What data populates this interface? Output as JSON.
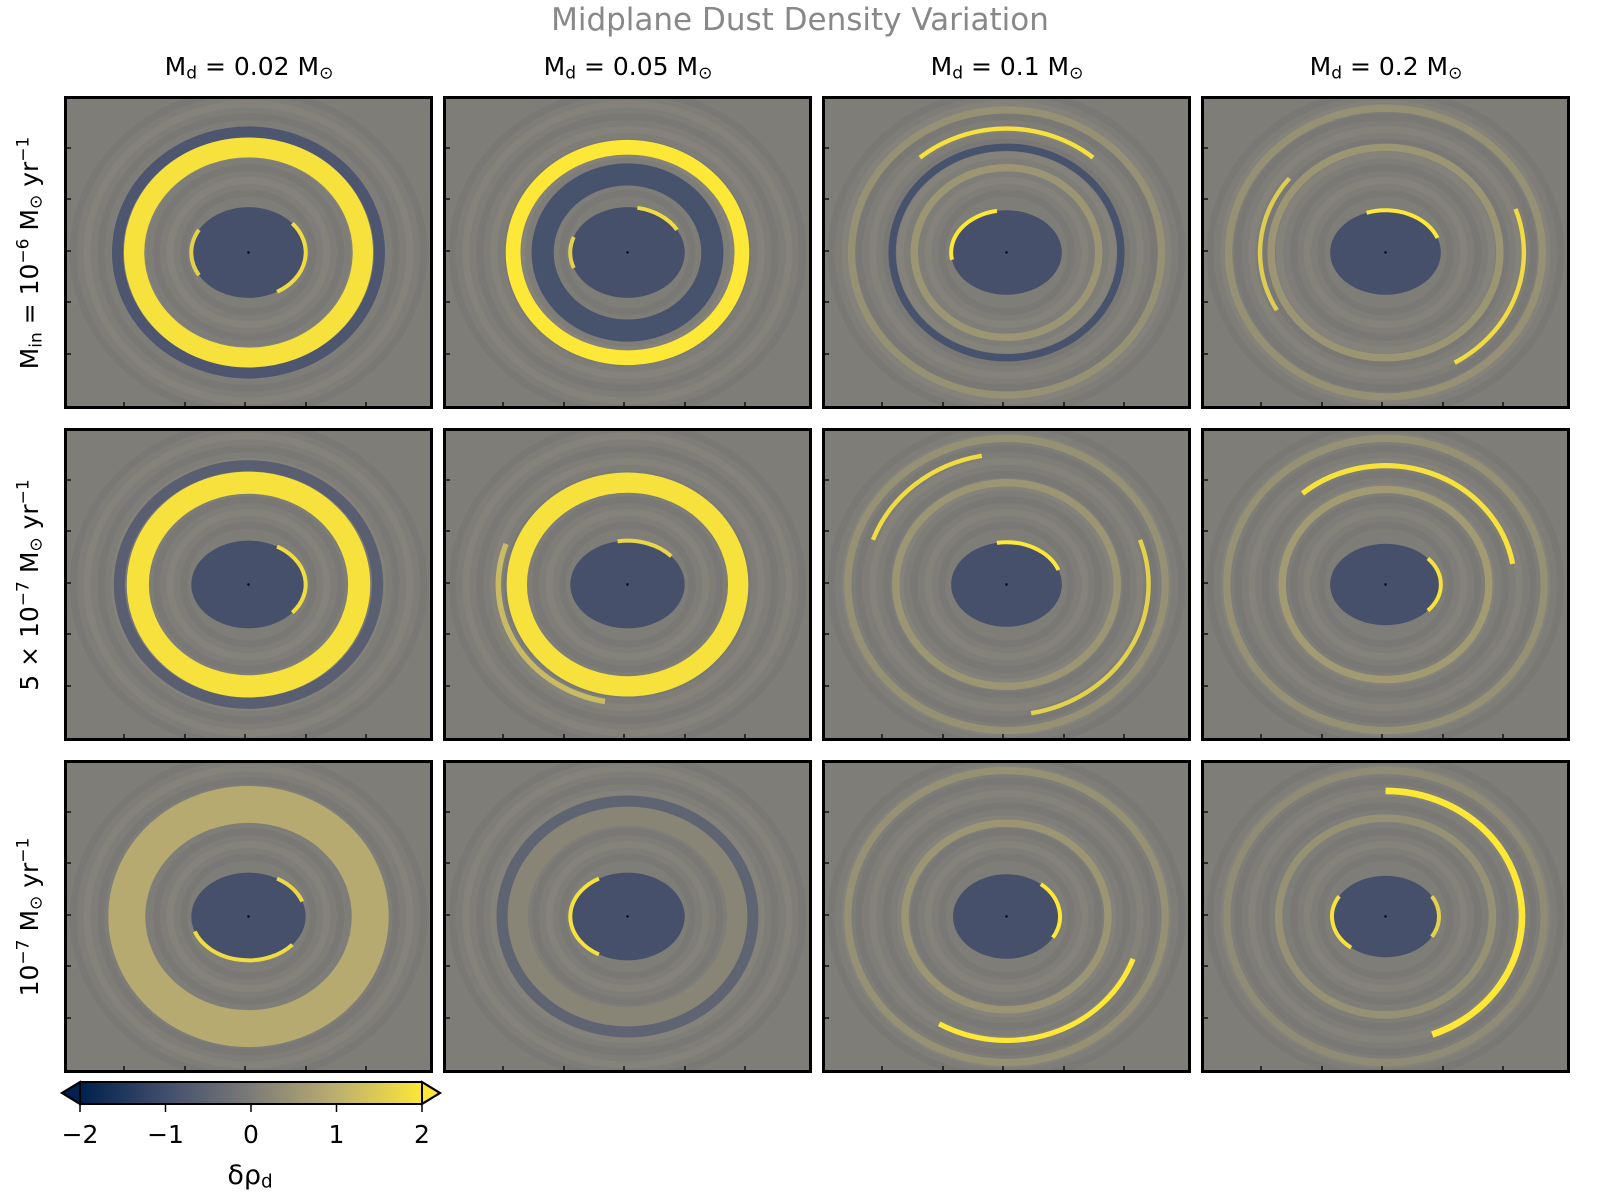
{
  "figure": {
    "title": "Midplane Dust Density Variation",
    "column_titles": [
      "0.02",
      "0.05",
      "0.1",
      "0.2"
    ],
    "column_title_prefix": "M",
    "column_title_sub": "d",
    "column_title_unit": "M",
    "row_labels": [
      {
        "prefix": "M",
        "sub": "in",
        "eq": " = 10",
        "exp": "−6",
        "unit": " M",
        "unit_sub": "⊙",
        "rate": " yr",
        "rate_exp": "−1"
      },
      {
        "prefix": "",
        "sub": "",
        "eq": "5 × 10",
        "exp": "−7",
        "unit": " M",
        "unit_sub": "⊙",
        "rate": " yr",
        "rate_exp": "−1"
      },
      {
        "prefix": "",
        "sub": "",
        "eq": "10",
        "exp": "−7",
        "unit": " M",
        "unit_sub": "⊙",
        "rate": " yr",
        "rate_exp": "−1"
      }
    ],
    "colorbar": {
      "label": "δρ",
      "label_sub": "d",
      "ticks": [
        "−2",
        "−1",
        "0",
        "1",
        "2"
      ],
      "range": [
        -2,
        2
      ],
      "colormap": "cividis",
      "extend": "both"
    },
    "colors": {
      "background": "#7e7d78",
      "cavity": "#47506a",
      "bright": "#f7e646",
      "dark_band": "#5b6071"
    }
  },
  "chart_data": {
    "type": "heatmap",
    "rows": 3,
    "cols": 4,
    "value_range": [
      -2,
      2
    ],
    "panels": [
      {
        "row": 0,
        "col": 0,
        "cavity": [
          0.31,
          0.29
        ],
        "rings": [
          {
            "r": 0.62,
            "w": 0.055,
            "v": 1.9,
            "a0": 0,
            "a1": 360
          },
          {
            "r": 0.71,
            "w": 0.03,
            "v": -0.8,
            "a0": 0,
            "a1": 360
          }
        ],
        "inner": [
          {
            "a0": 300,
            "a1": 40,
            "v": 1.8
          },
          {
            "a0": 150,
            "a1": 210,
            "v": 1.6
          }
        ]
      },
      {
        "row": 0,
        "col": 1,
        "cavity": [
          0.31,
          0.29
        ],
        "rings": [
          {
            "r": 0.62,
            "w": 0.04,
            "v": 2.0,
            "a0": 0,
            "a1": 360
          },
          {
            "r": 0.46,
            "w": 0.06,
            "v": -0.9,
            "a0": 0,
            "a1": 360
          }
        ],
        "inner": [
          {
            "a0": 30,
            "a1": 80,
            "v": 1.8
          },
          {
            "a0": 160,
            "a1": 200,
            "v": 1.6
          }
        ]
      },
      {
        "row": 0,
        "col": 2,
        "cavity": [
          0.3,
          0.27
        ],
        "rings": [
          {
            "r": 0.73,
            "w": 0.012,
            "v": 1.9,
            "a0": 50,
            "a1": 130
          },
          {
            "r": 0.62,
            "w": 0.02,
            "v": -0.9,
            "a0": 0,
            "a1": 360
          },
          {
            "r": 0.84,
            "w": 0.02,
            "v": 0.4,
            "a0": 0,
            "a1": 360
          },
          {
            "r": 0.5,
            "w": 0.02,
            "v": 0.5,
            "a0": 0,
            "a1": 360
          }
        ],
        "inner": [
          {
            "a0": 100,
            "a1": 190,
            "v": 2.0
          }
        ]
      },
      {
        "row": 0,
        "col": 3,
        "cavity": [
          0.3,
          0.27
        ],
        "rings": [
          {
            "r": 0.75,
            "w": 0.012,
            "v": 1.8,
            "a0": 300,
            "a1": 20
          },
          {
            "r": 0.68,
            "w": 0.012,
            "v": 1.5,
            "a0": 140,
            "a1": 210
          },
          {
            "r": 0.62,
            "w": 0.02,
            "v": 0.5,
            "a0": 0,
            "a1": 360
          },
          {
            "r": 0.85,
            "w": 0.02,
            "v": 0.4,
            "a0": 0,
            "a1": 360
          }
        ],
        "inner": [
          {
            "a0": 20,
            "a1": 110,
            "v": 2.0
          }
        ]
      },
      {
        "row": 1,
        "col": 0,
        "cavity": [
          0.31,
          0.28
        ],
        "rings": [
          {
            "r": 0.6,
            "w": 0.06,
            "v": 1.9,
            "a0": 0,
            "a1": 360
          },
          {
            "r": 0.7,
            "w": 0.03,
            "v": -0.6,
            "a0": 0,
            "a1": 360
          }
        ],
        "inner": [
          {
            "a0": 320,
            "a1": 60,
            "v": 1.8
          }
        ]
      },
      {
        "row": 1,
        "col": 1,
        "cavity": [
          0.31,
          0.28
        ],
        "rings": [
          {
            "r": 0.6,
            "w": 0.055,
            "v": 1.9,
            "a0": 0,
            "a1": 360
          },
          {
            "r": 0.7,
            "w": 0.015,
            "v": 1.2,
            "a0": 160,
            "a1": 260
          }
        ],
        "inner": [
          {
            "a0": 40,
            "a1": 100,
            "v": 1.7
          }
        ]
      },
      {
        "row": 1,
        "col": 2,
        "cavity": [
          0.3,
          0.27
        ],
        "rings": [
          {
            "r": 0.77,
            "w": 0.012,
            "v": 1.8,
            "a0": 100,
            "a1": 160
          },
          {
            "r": 0.77,
            "w": 0.012,
            "v": 1.6,
            "a0": 280,
            "a1": 20
          },
          {
            "r": 0.6,
            "w": 0.02,
            "v": 0.5,
            "a0": 0,
            "a1": 360
          },
          {
            "r": 0.86,
            "w": 0.02,
            "v": 0.4,
            "a0": 0,
            "a1": 360
          }
        ],
        "inner": [
          {
            "a0": 20,
            "a1": 100,
            "v": 2.0
          }
        ]
      },
      {
        "row": 1,
        "col": 3,
        "cavity": [
          0.3,
          0.26
        ],
        "rings": [
          {
            "r": 0.7,
            "w": 0.014,
            "v": 1.9,
            "a0": 10,
            "a1": 130
          },
          {
            "r": 0.56,
            "w": 0.02,
            "v": 0.6,
            "a0": 0,
            "a1": 360
          },
          {
            "r": 0.86,
            "w": 0.02,
            "v": 0.4,
            "a0": 0,
            "a1": 360
          }
        ],
        "inner": [
          {
            "a0": 320,
            "a1": 40,
            "v": 1.9
          }
        ]
      },
      {
        "row": 2,
        "col": 0,
        "cavity": [
          0.31,
          0.28
        ],
        "rings": [
          {
            "r": 0.66,
            "w": 0.1,
            "v": 0.9,
            "a0": 0,
            "a1": 360
          }
        ],
        "inner": [
          {
            "a0": 200,
            "a1": 320,
            "v": 1.8
          },
          {
            "a0": 20,
            "a1": 60,
            "v": 1.7
          }
        ]
      },
      {
        "row": 2,
        "col": 1,
        "cavity": [
          0.31,
          0.28
        ],
        "rings": [
          {
            "r": 0.6,
            "w": 0.06,
            "v": 0.2,
            "a0": 0,
            "a1": 360
          },
          {
            "r": 0.68,
            "w": 0.03,
            "v": -0.5,
            "a0": 0,
            "a1": 360
          }
        ],
        "inner": [
          {
            "a0": 120,
            "a1": 240,
            "v": 1.9
          }
        ]
      },
      {
        "row": 2,
        "col": 2,
        "cavity": [
          0.29,
          0.27
        ],
        "rings": [
          {
            "r": 0.73,
            "w": 0.014,
            "v": 2.0,
            "a0": 240,
            "a1": 340
          },
          {
            "r": 0.55,
            "w": 0.02,
            "v": 0.5,
            "a0": 0,
            "a1": 360
          },
          {
            "r": 0.86,
            "w": 0.02,
            "v": 0.4,
            "a0": 0,
            "a1": 360
          }
        ],
        "inner": [
          {
            "a0": 330,
            "a1": 50,
            "v": 2.0
          }
        ]
      },
      {
        "row": 2,
        "col": 3,
        "cavity": [
          0.29,
          0.26
        ],
        "rings": [
          {
            "r": 0.74,
            "w": 0.018,
            "v": 2.0,
            "a0": 290,
            "a1": 90
          },
          {
            "r": 0.58,
            "w": 0.02,
            "v": 0.4,
            "a0": 0,
            "a1": 360
          },
          {
            "r": 0.86,
            "w": 0.02,
            "v": 0.3,
            "a0": 0,
            "a1": 360
          }
        ],
        "inner": [
          {
            "a0": 150,
            "a1": 230,
            "v": 1.9
          },
          {
            "a0": 330,
            "a1": 30,
            "v": 1.6
          }
        ]
      }
    ]
  }
}
